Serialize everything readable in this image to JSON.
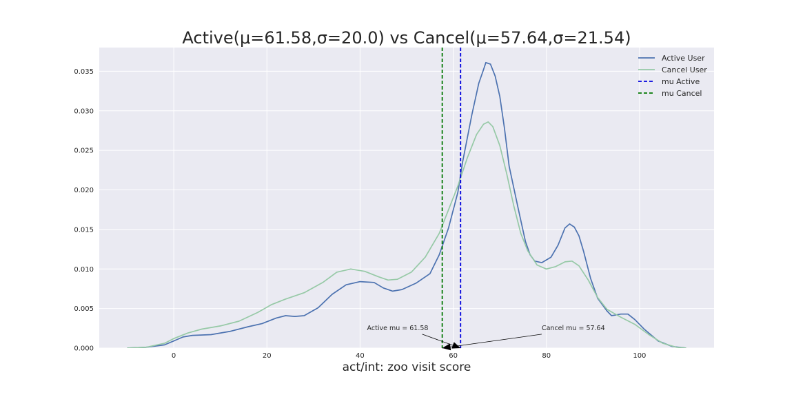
{
  "chart_data": {
    "type": "line",
    "title": "Active(μ=61.58,σ=20.0) vs Cancel(μ=57.64,σ=21.54)",
    "xlabel": "act/int: zoo visit score",
    "ylabel": "",
    "xlim": [
      -16,
      116
    ],
    "ylim": [
      0,
      0.038
    ],
    "grid": true,
    "legend_position": "top-right",
    "x_ticks": [
      0,
      20,
      40,
      60,
      80,
      100
    ],
    "y_ticks": [
      0.0,
      0.005,
      0.01,
      0.015,
      0.02,
      0.025,
      0.03,
      0.035
    ],
    "x_tick_labels": [
      "0",
      "20",
      "40",
      "60",
      "80",
      "100"
    ],
    "y_tick_labels": [
      "0.000",
      "0.005",
      "0.010",
      "0.015",
      "0.020",
      "0.025",
      "0.030",
      "0.035"
    ],
    "series": [
      {
        "name": "Active User",
        "color": "#4c72b0",
        "style": "solid",
        "points": [
          [
            -10,
            0.0
          ],
          [
            -6,
            0.0001
          ],
          [
            -2,
            0.0004
          ],
          [
            0,
            0.0009
          ],
          [
            2,
            0.0014
          ],
          [
            4,
            0.0016
          ],
          [
            8,
            0.0017
          ],
          [
            12,
            0.0021
          ],
          [
            16,
            0.0027
          ],
          [
            19,
            0.0031
          ],
          [
            22,
            0.0038
          ],
          [
            24,
            0.0041
          ],
          [
            26,
            0.004
          ],
          [
            28,
            0.0041
          ],
          [
            31,
            0.0051
          ],
          [
            34,
            0.0068
          ],
          [
            37,
            0.008
          ],
          [
            40,
            0.0084
          ],
          [
            43,
            0.0083
          ],
          [
            45,
            0.0076
          ],
          [
            47,
            0.0072
          ],
          [
            49,
            0.0074
          ],
          [
            52,
            0.0082
          ],
          [
            55,
            0.0094
          ],
          [
            57,
            0.0118
          ],
          [
            59,
            0.0152
          ],
          [
            61,
            0.0197
          ],
          [
            62,
            0.0235
          ],
          [
            64,
            0.0295
          ],
          [
            65.5,
            0.0335
          ],
          [
            66.5,
            0.0352
          ],
          [
            67,
            0.0361
          ],
          [
            68,
            0.0359
          ],
          [
            69,
            0.0344
          ],
          [
            70,
            0.0318
          ],
          [
            71,
            0.0278
          ],
          [
            72,
            0.023
          ],
          [
            74,
            0.0175
          ],
          [
            75.5,
            0.0135
          ],
          [
            76.5,
            0.0118
          ],
          [
            77.5,
            0.011
          ],
          [
            79,
            0.0108
          ],
          [
            81,
            0.0115
          ],
          [
            82.5,
            0.013
          ],
          [
            84,
            0.0152
          ],
          [
            85,
            0.0157
          ],
          [
            86,
            0.0153
          ],
          [
            87,
            0.0142
          ],
          [
            88,
            0.0122
          ],
          [
            89.5,
            0.0088
          ],
          [
            91,
            0.0063
          ],
          [
            93,
            0.0047
          ],
          [
            94,
            0.0041
          ],
          [
            96,
            0.0043
          ],
          [
            97.5,
            0.0043
          ],
          [
            99,
            0.0036
          ],
          [
            101,
            0.0024
          ],
          [
            104,
            0.0009
          ],
          [
            107,
            0.0002
          ],
          [
            110,
            0.0
          ]
        ]
      },
      {
        "name": "Cancel User",
        "color": "#96c9a6",
        "style": "solid",
        "points": [
          [
            -10,
            0.0
          ],
          [
            -6,
            0.0001
          ],
          [
            -2,
            0.0006
          ],
          [
            0,
            0.0012
          ],
          [
            3,
            0.0019
          ],
          [
            6,
            0.0024
          ],
          [
            10,
            0.0028
          ],
          [
            14,
            0.0034
          ],
          [
            18,
            0.0045
          ],
          [
            21,
            0.0055
          ],
          [
            24,
            0.0062
          ],
          [
            28,
            0.007
          ],
          [
            32,
            0.0083
          ],
          [
            35,
            0.0096
          ],
          [
            38,
            0.01
          ],
          [
            41,
            0.0097
          ],
          [
            44,
            0.009
          ],
          [
            46,
            0.0086
          ],
          [
            48,
            0.0087
          ],
          [
            51,
            0.0096
          ],
          [
            54,
            0.0115
          ],
          [
            57,
            0.0145
          ],
          [
            59,
            0.0175
          ],
          [
            61,
            0.0205
          ],
          [
            63,
            0.024
          ],
          [
            65,
            0.027
          ],
          [
            66.5,
            0.0283
          ],
          [
            67.5,
            0.0286
          ],
          [
            68.5,
            0.028
          ],
          [
            70,
            0.0256
          ],
          [
            71.5,
            0.022
          ],
          [
            73,
            0.018
          ],
          [
            74.5,
            0.0145
          ],
          [
            76,
            0.0123
          ],
          [
            78,
            0.0105
          ],
          [
            80,
            0.01
          ],
          [
            82,
            0.0103
          ],
          [
            84,
            0.0109
          ],
          [
            85.5,
            0.011
          ],
          [
            87,
            0.0104
          ],
          [
            89,
            0.0086
          ],
          [
            91,
            0.0064
          ],
          [
            93,
            0.0049
          ],
          [
            96,
            0.0039
          ],
          [
            99,
            0.003
          ],
          [
            102,
            0.0017
          ],
          [
            105,
            0.0006
          ],
          [
            108,
            0.0001
          ],
          [
            110,
            0.0
          ]
        ]
      }
    ],
    "vlines": [
      {
        "name": "mu Active",
        "x": 61.58,
        "color": "#0000dd",
        "style": "dashed"
      },
      {
        "name": "mu Cancel",
        "x": 57.64,
        "color": "#007700",
        "style": "dashed"
      }
    ],
    "annotations": [
      {
        "text": "Active mu = 61.58",
        "target_x": 61.58,
        "target_y": 0,
        "text_x": 41.5,
        "text_y": 0.0021
      },
      {
        "text": "Cancel mu = 57.64",
        "target_x": 57.64,
        "target_y": 0,
        "text_x": 79,
        "text_y": 0.0021
      }
    ]
  }
}
